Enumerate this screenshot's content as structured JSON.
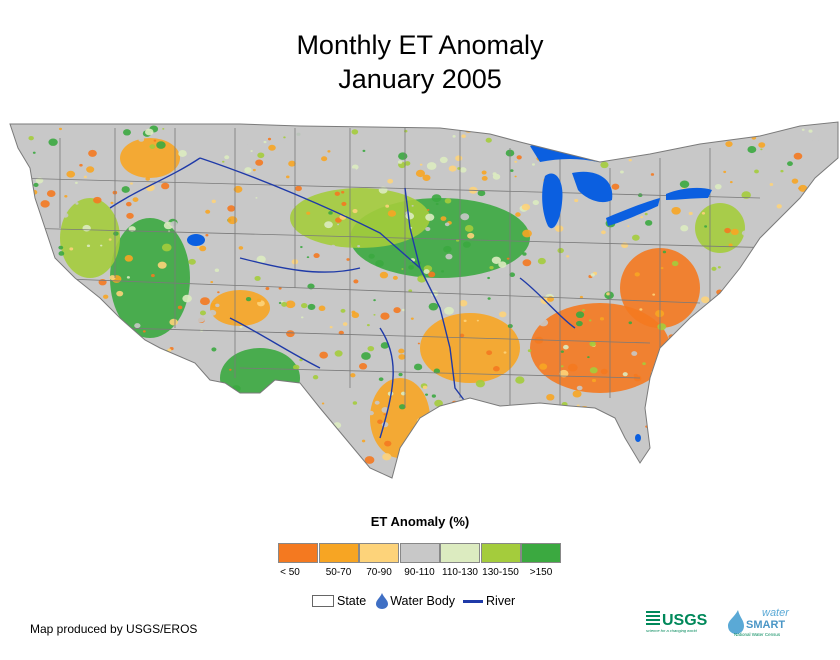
{
  "title": {
    "line1": "Monthly ET Anomaly",
    "line2": "January 2005"
  },
  "legend": {
    "heading": "ET Anomaly (%)",
    "classes": [
      {
        "label": "< 50",
        "color": "#f47920"
      },
      {
        "label": "50-70",
        "color": "#f7a523"
      },
      {
        "label": "70-90",
        "color": "#fdd37a"
      },
      {
        "label": "90-110",
        "color": "#c8c8c8"
      },
      {
        "label": "110-130",
        "color": "#dcebc0"
      },
      {
        "label": "130-150",
        "color": "#a4cc3c"
      },
      {
        "label": ">150",
        "color": "#3ba940"
      }
    ],
    "key": {
      "state": "State",
      "water_body": "Water Body",
      "river": "River"
    }
  },
  "credit": "Map produced by USGS/EROS",
  "logos": {
    "usgs": "USGS",
    "usgs_tagline": "science for a changing world",
    "water": "water",
    "smart": "SMART",
    "smart_tagline": "National Water Census"
  },
  "colors": {
    "water": "#0b5fe0",
    "river": "#1f3aa8",
    "state_border": "#7a7a7a"
  }
}
